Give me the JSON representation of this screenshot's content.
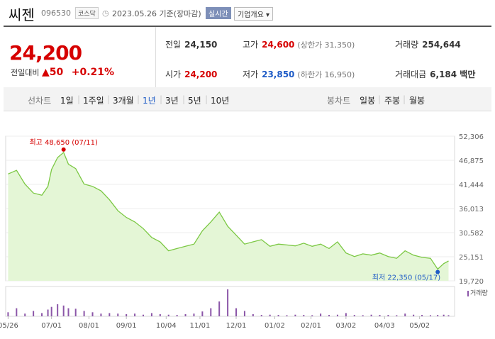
{
  "header": {
    "stock_name": "씨젠",
    "code": "096530",
    "market_badge": "코스닥",
    "date": "2023.05.26 기준(장마감)",
    "realtime_label": "실시간",
    "company_overview_label": "기업개요"
  },
  "quote": {
    "price": "24,200",
    "change_label": "전일대비",
    "change_value": "50",
    "change_percent": "+0.21%",
    "prev_close_label": "전일",
    "prev_close": "24,150",
    "high_label": "고가",
    "high": "24,600",
    "upper_limit_label": "(상한가 31,350)",
    "volume_label": "거래량",
    "volume": "254,644",
    "open_label": "시가",
    "open": "24,200",
    "low_label": "저가",
    "low": "23,850",
    "lower_limit_label": "(하한가 16,950)",
    "amount_label": "거래대금",
    "amount": "6,184 백만"
  },
  "period_bar": {
    "line_chart_label": "선차트",
    "periods": [
      "1일",
      "1주일",
      "3개월",
      "1년",
      "3년",
      "5년",
      "10년"
    ],
    "active_period": "1년",
    "candle_chart_label": "봉차트",
    "candles": [
      "일봉",
      "주봉",
      "월봉"
    ]
  },
  "colors": {
    "up": "#d60000",
    "down": "#1e5bc6",
    "line": "#7bc843",
    "fill": "#e4f6d6",
    "volume": "#8b56a8"
  },
  "chart_data": {
    "type": "area",
    "y_ticks": [
      "52,306",
      "46,875",
      "41,444",
      "36,013",
      "30,582",
      "25,151",
      "19,720"
    ],
    "ylim": [
      19720,
      52306
    ],
    "x_ticks": [
      "05/26",
      "07/01",
      "08/01",
      "09/01",
      "10/04",
      "11/01",
      "12/01",
      "01/02",
      "02/01",
      "03/02",
      "04/03",
      "05/02"
    ],
    "x_dates": [
      "2022-05-26",
      "2022-06-02",
      "2022-06-09",
      "2022-06-16",
      "2022-06-23",
      "2022-06-28",
      "2022-07-01",
      "2022-07-06",
      "2022-07-11",
      "2022-07-15",
      "2022-07-21",
      "2022-07-28",
      "2022-08-04",
      "2022-08-11",
      "2022-08-18",
      "2022-08-25",
      "2022-09-01",
      "2022-09-08",
      "2022-09-15",
      "2022-09-22",
      "2022-09-29",
      "2022-10-06",
      "2022-10-13",
      "2022-10-20",
      "2022-10-27",
      "2022-11-03",
      "2022-11-10",
      "2022-11-17",
      "2022-11-24",
      "2022-12-01",
      "2022-12-08",
      "2022-12-15",
      "2022-12-22",
      "2022-12-29",
      "2023-01-05",
      "2023-01-12",
      "2023-01-19",
      "2023-01-26",
      "2023-02-02",
      "2023-02-09",
      "2023-02-16",
      "2023-02-23",
      "2023-03-02",
      "2023-03-09",
      "2023-03-16",
      "2023-03-23",
      "2023-03-30",
      "2023-04-06",
      "2023-04-13",
      "2023-04-20",
      "2023-04-27",
      "2023-05-04",
      "2023-05-11",
      "2023-05-17",
      "2023-05-22",
      "2023-05-26"
    ],
    "price": [
      43800,
      44600,
      41500,
      39500,
      39000,
      41000,
      44800,
      47500,
      48650,
      46000,
      45000,
      41500,
      41000,
      40000,
      38000,
      35500,
      34000,
      33000,
      31500,
      29500,
      28500,
      26500,
      27000,
      27500,
      28000,
      31000,
      33000,
      35200,
      32000,
      30000,
      28000,
      28500,
      29000,
      27500,
      28000,
      27800,
      27600,
      28200,
      27500,
      28000,
      27000,
      28500,
      26000,
      25200,
      25800,
      25500,
      26000,
      25200,
      24800,
      26500,
      25500,
      25000,
      24800,
      22350,
      23600,
      24200
    ],
    "high_label": "최고 48,650 (07/11)",
    "low_label": "최저 22,350 (05/17)",
    "volume_legend": "거래량",
    "volume_rel": [
      0.15,
      0.3,
      0.1,
      0.2,
      0.12,
      0.25,
      0.35,
      0.45,
      0.4,
      0.3,
      0.28,
      0.2,
      0.15,
      0.1,
      0.12,
      0.1,
      0.08,
      0.1,
      0.06,
      0.12,
      0.08,
      0.06,
      0.05,
      0.08,
      0.1,
      0.18,
      0.3,
      0.55,
      1.0,
      0.3,
      0.2,
      0.08,
      0.05,
      0.06,
      0.05,
      0.04,
      0.06,
      0.05,
      0.04,
      0.1,
      0.05,
      0.06,
      0.12,
      0.05,
      0.04,
      0.06,
      0.05,
      0.05,
      0.04,
      0.1,
      0.06,
      0.05,
      0.04,
      0.05,
      0.06,
      0.04
    ]
  }
}
